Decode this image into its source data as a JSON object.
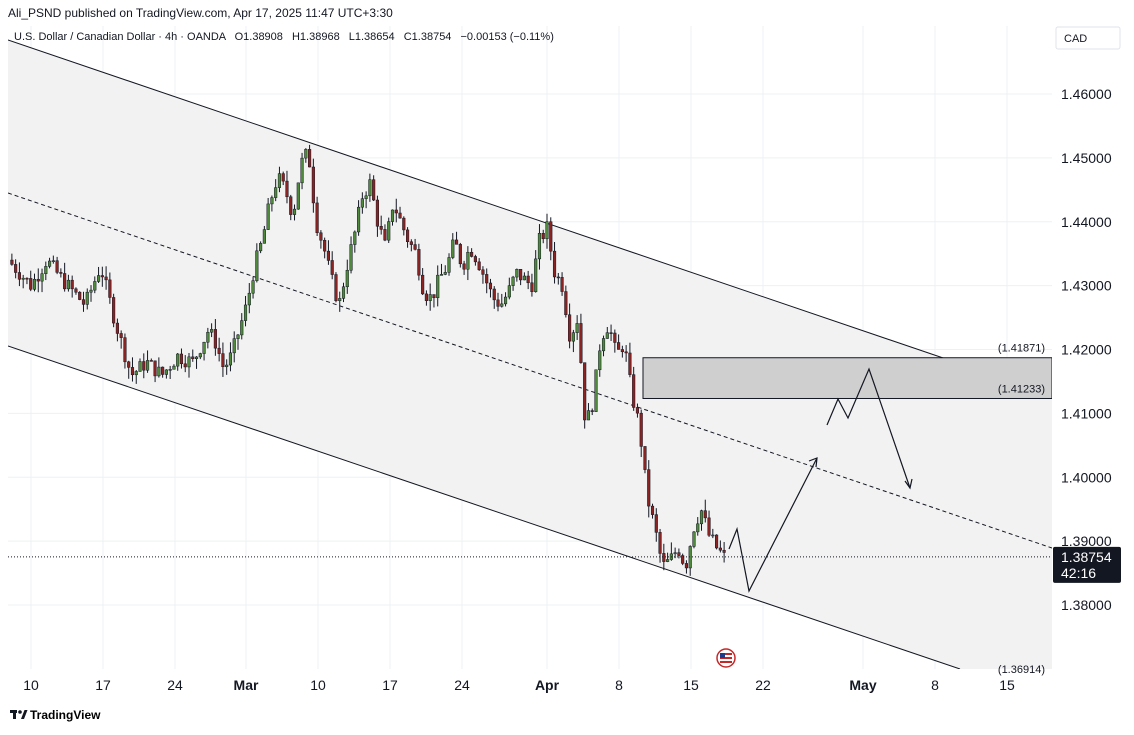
{
  "publisher": "Ali_PSND published on TradingView.com, Apr 17, 2025 11:47 UTC+3:30",
  "legend": {
    "symbol": "U.S. Dollar / Canadian Dollar · 4h · OANDA",
    "open": "O1.38908",
    "high": "H1.38968",
    "low": "L1.38654",
    "close": "C1.38754",
    "change": "−0.00153 (−0.11%)"
  },
  "currency": "CAD",
  "brand": "TradingView",
  "colors": {
    "up": "#4f8a3c",
    "down": "#8b2323",
    "channel_fill": "#f2f2f2",
    "zone_fill": "#cfcfcf",
    "price_label_bg": "#131722"
  },
  "chart_data": {
    "type": "candlestick",
    "timeframe": "4h",
    "y_range": [
      1.3705,
      1.4695
    ],
    "y_ticks": [
      "1.46000",
      "1.45000",
      "1.44000",
      "1.43000",
      "1.42000",
      "1.41000",
      "1.40000",
      "1.39000",
      "1.38000"
    ],
    "y_tick_values": [
      1.46,
      1.45,
      1.44,
      1.43,
      1.42,
      1.41,
      1.4,
      1.39,
      1.38
    ],
    "x_ticks": [
      "10",
      "17",
      "24",
      "Mar",
      "10",
      "17",
      "24",
      "Apr",
      "8",
      "15",
      "22",
      "May",
      "8",
      "15"
    ],
    "x_ticks_bold": [
      false,
      false,
      false,
      true,
      false,
      false,
      false,
      true,
      false,
      false,
      false,
      true,
      false,
      false
    ],
    "last_price": "1.38754",
    "last_price_value": 1.38754,
    "countdown": "42:16",
    "zone_labels": [
      "(1.41871)",
      "(1.41233)"
    ],
    "zone": [
      1.41233,
      1.41871
    ],
    "bottom_label": "(1.36914)",
    "price_path": [
      [
        0,
        1.434
      ],
      [
        3,
        1.43
      ],
      [
        5,
        1.434
      ],
      [
        7,
        1.431
      ],
      [
        10,
        1.427
      ],
      [
        12,
        1.433
      ],
      [
        14,
        1.424
      ],
      [
        16,
        1.416
      ],
      [
        18,
        1.418
      ],
      [
        20,
        1.416
      ],
      [
        22,
        1.419
      ],
      [
        24,
        1.418
      ],
      [
        26,
        1.423
      ],
      [
        27,
        1.421
      ],
      [
        28,
        1.417
      ],
      [
        29,
        1.419
      ],
      [
        30,
        1.423
      ],
      [
        31,
        1.427
      ],
      [
        32,
        1.433
      ],
      [
        33,
        1.437
      ],
      [
        34,
        1.443
      ],
      [
        35,
        1.447
      ],
      [
        36,
        1.445
      ],
      [
        37,
        1.441
      ],
      [
        38,
        1.449
      ],
      [
        39,
        1.451
      ],
      [
        40,
        1.44
      ],
      [
        41,
        1.436
      ],
      [
        42,
        1.431
      ],
      [
        43,
        1.427
      ],
      [
        44,
        1.433
      ],
      [
        45,
        1.438
      ],
      [
        46,
        1.444
      ],
      [
        47,
        1.446
      ],
      [
        48,
        1.44
      ],
      [
        49,
        1.436
      ],
      [
        50,
        1.443
      ],
      [
        51,
        1.44
      ],
      [
        52,
        1.437
      ],
      [
        53,
        1.435
      ],
      [
        54,
        1.429
      ],
      [
        55,
        1.428
      ],
      [
        56,
        1.431
      ],
      [
        57,
        1.433
      ],
      [
        58,
        1.437
      ],
      [
        59,
        1.433
      ],
      [
        60,
        1.436
      ],
      [
        61,
        1.434
      ],
      [
        62,
        1.431
      ],
      [
        63,
        1.428
      ],
      [
        64,
        1.427
      ],
      [
        65,
        1.429
      ],
      [
        66,
        1.432
      ],
      [
        67,
        1.431
      ],
      [
        68,
        1.43
      ],
      [
        69,
        1.437
      ],
      [
        70,
        1.439
      ],
      [
        71,
        1.432
      ],
      [
        72,
        1.43
      ],
      [
        73,
        1.422
      ],
      [
        74,
        1.425
      ],
      [
        75,
        1.408
      ],
      [
        76,
        1.412
      ],
      [
        77,
        1.422
      ],
      [
        78,
        1.424
      ],
      [
        79,
        1.419
      ],
      [
        80,
        1.421
      ],
      [
        81,
        1.413
      ],
      [
        82,
        1.408
      ],
      [
        83,
        1.397
      ],
      [
        84,
        1.392
      ],
      [
        85,
        1.386
      ],
      [
        86,
        1.387
      ],
      [
        87,
        1.389
      ],
      [
        88,
        1.386
      ],
      [
        89,
        1.392
      ],
      [
        90,
        1.395
      ],
      [
        91,
        1.391
      ],
      [
        92,
        1.389
      ],
      [
        93,
        1.3875
      ]
    ]
  }
}
